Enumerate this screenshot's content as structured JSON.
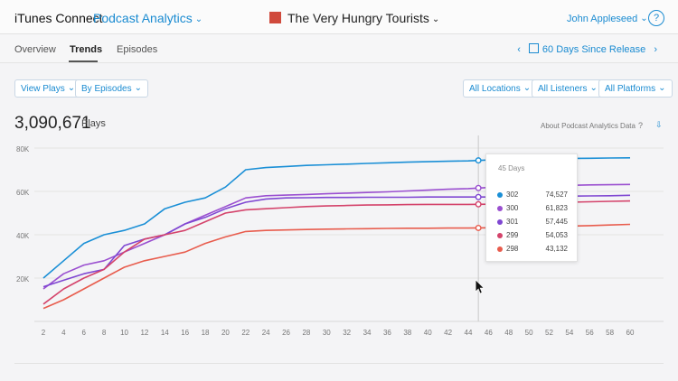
{
  "header": {
    "brand": "iTunes Connect",
    "app_name": "Podcast Analytics",
    "podcast_title": "The Very Hungry Tourists",
    "user_name": "John Appleseed",
    "help_label": "?"
  },
  "tabs": [
    {
      "label": "Overview"
    },
    {
      "label": "Trends"
    },
    {
      "label": "Episodes"
    }
  ],
  "date_range": {
    "label": "60 Days Since Release",
    "prev": "‹",
    "next": "›"
  },
  "filters": {
    "view": "View Plays",
    "group": "By Episodes",
    "locations": "All Locations",
    "listeners": "All Listeners",
    "platforms": "All Platforms"
  },
  "summary": {
    "total": "3,090,671",
    "unit": "Plays",
    "about_link": "About Podcast Analytics Data",
    "about_help": "?"
  },
  "tooltip": {
    "title": "45 Days",
    "rows": [
      {
        "episode": "302",
        "value": "74,527",
        "color": "#1a8fd6"
      },
      {
        "episode": "300",
        "value": "61,823",
        "color": "#9a4fd0"
      },
      {
        "episode": "301",
        "value": "57,445",
        "color": "#7f47d2"
      },
      {
        "episode": "299",
        "value": "54,053",
        "color": "#d4436b"
      },
      {
        "episode": "298",
        "value": "43,132",
        "color": "#e85c4d"
      }
    ]
  },
  "chart_data": {
    "type": "line",
    "x": [
      2,
      4,
      6,
      8,
      10,
      12,
      14,
      16,
      18,
      20,
      22,
      24,
      26,
      28,
      30,
      32,
      34,
      36,
      38,
      40,
      42,
      44,
      46,
      48,
      50,
      52,
      54,
      56,
      58,
      60
    ],
    "x_ticks": [
      "2",
      "4",
      "6",
      "8",
      "10",
      "12",
      "14",
      "16",
      "18",
      "20",
      "22",
      "24",
      "26",
      "28",
      "30",
      "32",
      "34",
      "36",
      "38",
      "40",
      "42",
      "44",
      "46",
      "48",
      "50",
      "52",
      "54",
      "56",
      "58",
      "60"
    ],
    "y_ticks": [
      "80K",
      "60K",
      "40K",
      "20K"
    ],
    "y_tick_values": [
      80000,
      60000,
      40000,
      20000
    ],
    "ylim": [
      0,
      80000
    ],
    "xlim": [
      2,
      60
    ],
    "grid": true,
    "hover_x": 45,
    "series": [
      {
        "name": "302",
        "color": "#1a8fd6",
        "values": [
          20000,
          28000,
          36000,
          40000,
          42000,
          45000,
          52000,
          55000,
          57000,
          62000,
          70000,
          71000,
          71500,
          72000,
          72300,
          72600,
          72900,
          73200,
          73500,
          73700,
          73900,
          74100,
          74500,
          74800,
          75000,
          75100,
          75200,
          75300,
          75400,
          75500
        ]
      },
      {
        "name": "300",
        "color": "#9a4fd0",
        "values": [
          15000,
          22000,
          26000,
          28000,
          32000,
          36000,
          40000,
          45000,
          49000,
          53000,
          57000,
          58000,
          58300,
          58600,
          58900,
          59200,
          59500,
          59800,
          60200,
          60600,
          61000,
          61300,
          61800,
          62200,
          62400,
          62600,
          62800,
          63000,
          63100,
          63200
        ]
      },
      {
        "name": "301",
        "color": "#7f47d2",
        "values": [
          16000,
          19000,
          22000,
          24000,
          35000,
          38000,
          40000,
          45000,
          48000,
          52000,
          55000,
          56500,
          57000,
          57100,
          57200,
          57200,
          57300,
          57300,
          57300,
          57400,
          57400,
          57400,
          57400,
          57500,
          57600,
          57700,
          57800,
          57900,
          58000,
          58200
        ]
      },
      {
        "name": "299",
        "color": "#d4436b",
        "values": [
          8000,
          15000,
          20000,
          24000,
          32000,
          38000,
          40000,
          42000,
          46000,
          50000,
          51500,
          52000,
          52500,
          53000,
          53300,
          53500,
          53700,
          53800,
          53900,
          54000,
          54000,
          54000,
          54100,
          54300,
          54500,
          54800,
          55000,
          55200,
          55400,
          55600
        ]
      },
      {
        "name": "298",
        "color": "#e85c4d",
        "values": [
          6000,
          10000,
          15000,
          20000,
          25000,
          28000,
          30000,
          32000,
          36000,
          39000,
          41500,
          42000,
          42200,
          42400,
          42600,
          42700,
          42800,
          42900,
          43000,
          43000,
          43100,
          43100,
          43200,
          43400,
          43600,
          43800,
          44000,
          44200,
          44500,
          44800
        ]
      }
    ]
  }
}
